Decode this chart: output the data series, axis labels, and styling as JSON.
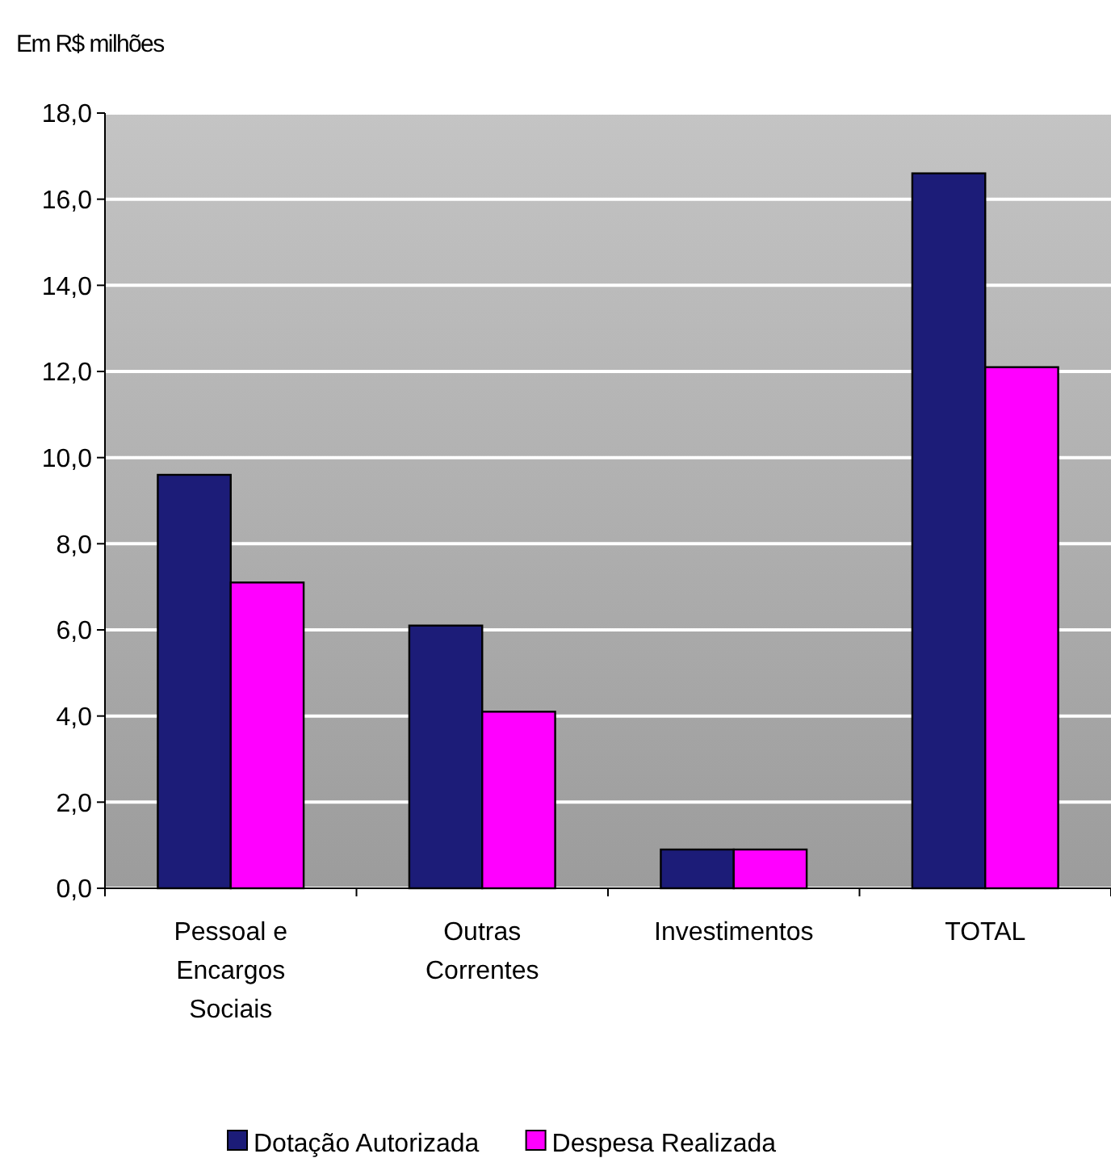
{
  "chart_data": {
    "type": "bar",
    "ylabel": "Em R$ milhões",
    "categories": [
      "Pessoal e Encargos Sociais",
      "Outras Correntes",
      "Investimentos",
      "TOTAL"
    ],
    "series": [
      {
        "name": "Dotação Autorizada",
        "color": "#1c1c78",
        "values": [
          9.6,
          6.1,
          0.9,
          16.6
        ]
      },
      {
        "name": "Despesa Realizada",
        "color": "#ff00ff",
        "values": [
          7.1,
          4.1,
          0.9,
          12.1
        ]
      }
    ],
    "ylim": [
      0,
      18
    ],
    "yticks": [
      {
        "value": 0,
        "label": "0,0"
      },
      {
        "value": 2,
        "label": "2,0"
      },
      {
        "value": 4,
        "label": "4,0"
      },
      {
        "value": 6,
        "label": "6,0"
      },
      {
        "value": 8,
        "label": "8,0"
      },
      {
        "value": 10,
        "label": "10,0"
      },
      {
        "value": 12,
        "label": "12,0"
      },
      {
        "value": 14,
        "label": "14,0"
      },
      {
        "value": 16,
        "label": "16,0"
      },
      {
        "value": 18,
        "label": "18,0"
      }
    ],
    "grid": "y",
    "legend": "bottom"
  }
}
